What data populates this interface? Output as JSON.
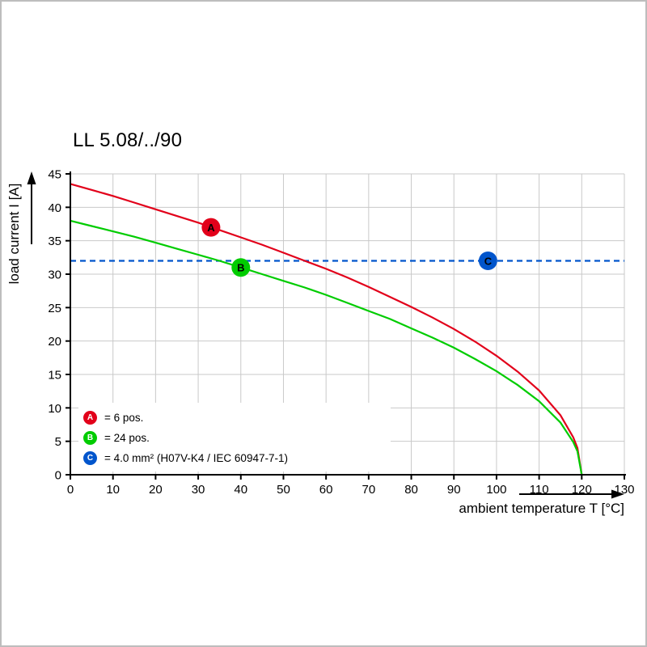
{
  "chart_data": {
    "type": "line",
    "title": "LL 5.08/../90",
    "xlabel": "ambient temperature T [°C]",
    "ylabel": "load current I [A]",
    "xlim": [
      0,
      130
    ],
    "ylim": [
      0,
      45
    ],
    "x_ticks": [
      0,
      10,
      20,
      30,
      40,
      50,
      60,
      70,
      80,
      90,
      100,
      110,
      120,
      130
    ],
    "y_ticks": [
      0,
      5,
      10,
      15,
      20,
      25,
      30,
      35,
      40,
      45
    ],
    "grid": true,
    "legend_position": "bottom-left",
    "series": [
      {
        "name": "A",
        "label": "= 6 pos.",
        "color": "#e2001a",
        "style": "solid",
        "x": [
          0,
          5,
          10,
          15,
          20,
          25,
          30,
          35,
          40,
          45,
          50,
          55,
          60,
          65,
          70,
          75,
          80,
          85,
          90,
          95,
          100,
          105,
          110,
          115,
          118,
          119,
          120
        ],
        "y": [
          43.5,
          42.6,
          41.7,
          40.7,
          39.7,
          38.7,
          37.7,
          36.6,
          35.5,
          34.4,
          33.2,
          32.0,
          30.8,
          29.5,
          28.1,
          26.6,
          25.1,
          23.5,
          21.8,
          19.9,
          17.8,
          15.4,
          12.6,
          8.9,
          5.6,
          4.0,
          0
        ]
      },
      {
        "name": "B",
        "label": "= 24 pos.",
        "color": "#00cc00",
        "style": "solid",
        "x": [
          0,
          5,
          10,
          15,
          20,
          25,
          30,
          35,
          40,
          45,
          50,
          55,
          60,
          65,
          70,
          75,
          80,
          85,
          90,
          95,
          100,
          105,
          110,
          115,
          118,
          119,
          120
        ],
        "y": [
          38.0,
          37.2,
          36.4,
          35.6,
          34.7,
          33.8,
          32.9,
          32.0,
          31.0,
          30.0,
          29.0,
          28.0,
          26.9,
          25.7,
          24.5,
          23.3,
          21.9,
          20.5,
          19.0,
          17.3,
          15.5,
          13.4,
          11.0,
          7.8,
          4.9,
          3.5,
          0
        ]
      },
      {
        "name": "C",
        "label": "= 4.0 mm² (H07V-K4 / IEC 60947-7-1)",
        "color": "#0055cc",
        "style": "dashed",
        "x": [
          0,
          130
        ],
        "y": [
          32,
          32
        ]
      }
    ],
    "markers": [
      {
        "letter": "A",
        "color": "#e2001a",
        "x": 33,
        "y": 37.0
      },
      {
        "letter": "B",
        "color": "#00cc00",
        "x": 40,
        "y": 31.0
      },
      {
        "letter": "C",
        "color": "#0055cc",
        "x": 98,
        "y": 32
      }
    ]
  }
}
